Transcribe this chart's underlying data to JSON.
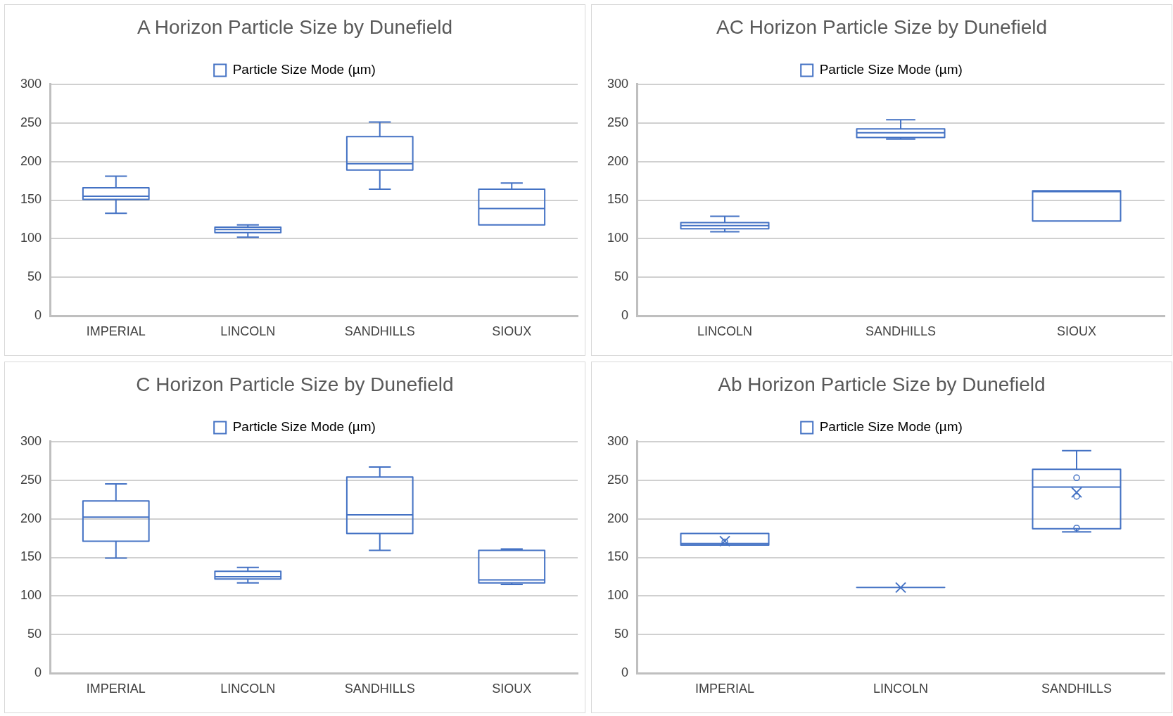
{
  "chart_data": [
    {
      "type": "box",
      "title": "A Horizon Particle Size by Dunefield",
      "categories": [
        "IMPERIAL",
        "LINCOLN",
        "SANDHILLS",
        "SIOUX"
      ],
      "ylim": [
        0,
        300
      ],
      "yticks": [
        0,
        50,
        100,
        150,
        200,
        250,
        300
      ],
      "grid": "y",
      "legend": "top",
      "series": [
        {
          "name": "Particle Size Mode (µm)",
          "color": "#4472c4",
          "boxes": [
            {
              "low": 133,
              "q1": 151,
              "median": 155,
              "q3": 166,
              "high": 181
            },
            {
              "low": 102,
              "q1": 108,
              "median": 112,
              "q3": 115,
              "high": 118
            },
            {
              "low": 164,
              "q1": 189,
              "median": 197,
              "q3": 232,
              "high": 251
            },
            {
              "low": 118,
              "q1": 118,
              "median": 139,
              "q3": 164,
              "high": 172
            }
          ]
        }
      ]
    },
    {
      "type": "box",
      "title": "AC Horizon Particle Size by Dunefield",
      "categories": [
        "LINCOLN",
        "SANDHILLS",
        "SIOUX"
      ],
      "ylim": [
        0,
        300
      ],
      "yticks": [
        0,
        50,
        100,
        150,
        200,
        250,
        300
      ],
      "grid": "y",
      "legend": "top",
      "series": [
        {
          "name": "Particle Size Mode (µm)",
          "color": "#4472c4",
          "boxes": [
            {
              "low": 109,
              "q1": 113,
              "median": 117,
              "q3": 121,
              "high": 129
            },
            {
              "low": 229,
              "q1": 231,
              "median": 237,
              "q3": 242,
              "high": 254
            },
            {
              "low": 123,
              "q1": 123,
              "median": 161,
              "q3": 162,
              "high": 162
            }
          ]
        }
      ]
    },
    {
      "type": "box",
      "title": "C Horizon Particle Size by Dunefield",
      "categories": [
        "IMPERIAL",
        "LINCOLN",
        "SANDHILLS",
        "SIOUX"
      ],
      "ylim": [
        0,
        300
      ],
      "yticks": [
        0,
        50,
        100,
        150,
        200,
        250,
        300
      ],
      "grid": "y",
      "legend": "top",
      "series": [
        {
          "name": "Particle Size Mode (µm)",
          "color": "#4472c4",
          "boxes": [
            {
              "low": 149,
              "q1": 171,
              "median": 202,
              "q3": 223,
              "high": 245
            },
            {
              "low": 117,
              "q1": 122,
              "median": 125,
              "q3": 132,
              "high": 137
            },
            {
              "low": 159,
              "q1": 181,
              "median": 205,
              "q3": 254,
              "high": 267
            },
            {
              "low": 115,
              "q1": 117,
              "median": 121,
              "q3": 159,
              "high": 161
            }
          ]
        }
      ]
    },
    {
      "type": "box",
      "title": "Ab Horizon Particle Size by Dunefield",
      "categories": [
        "IMPERIAL",
        "LINCOLN",
        "SANDHILLS"
      ],
      "ylim": [
        0,
        300
      ],
      "yticks": [
        0,
        50,
        100,
        150,
        200,
        250,
        300
      ],
      "grid": "y",
      "legend": "top",
      "series": [
        {
          "name": "Particle Size Mode (µm)",
          "color": "#4472c4",
          "boxes": [
            {
              "low": 166,
              "q1": 166,
              "median": 168,
              "q3": 181,
              "high": 181,
              "mean": 171,
              "outliers": [
                170
              ]
            },
            {
              "low": 111,
              "q1": 111,
              "median": 111,
              "q3": 111,
              "high": 111,
              "mean": 111
            },
            {
              "low": 183,
              "q1": 187,
              "median": 241,
              "q3": 264,
              "high": 288,
              "mean": 234,
              "outliers": [
                253,
                229,
                188
              ]
            }
          ]
        }
      ]
    }
  ]
}
